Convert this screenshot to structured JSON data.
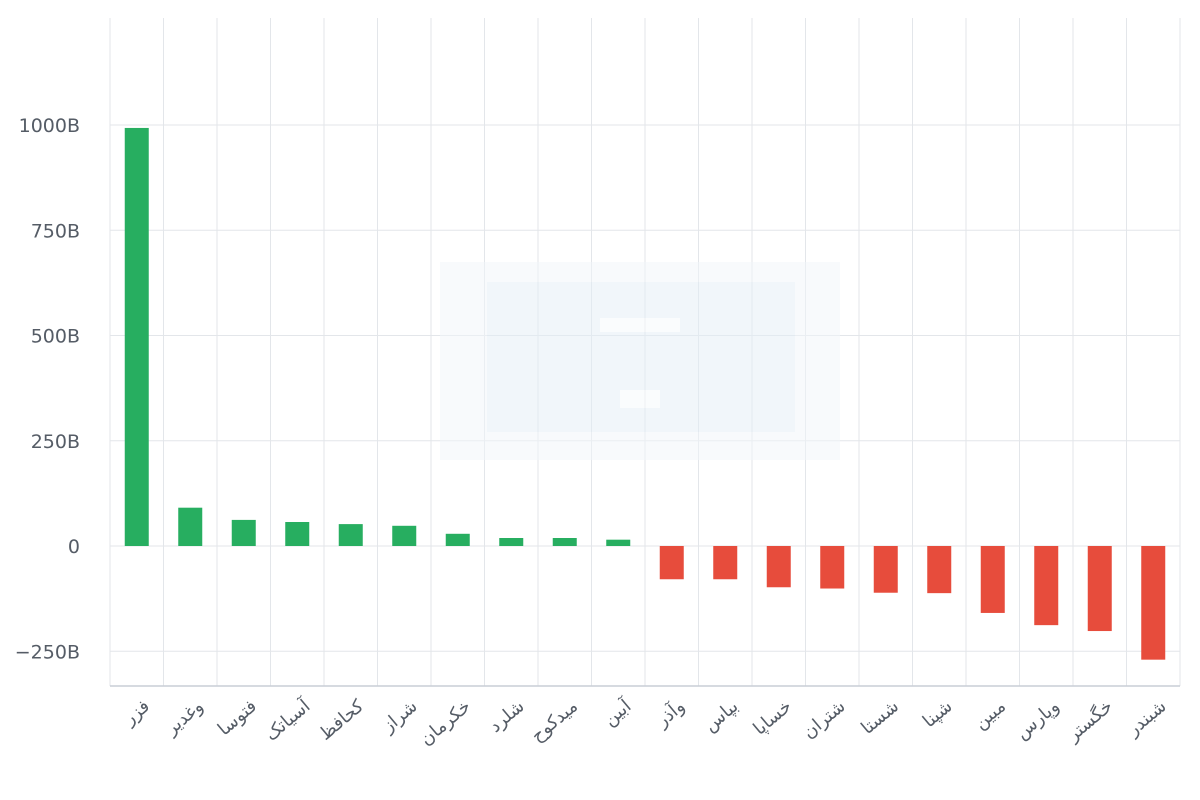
{
  "chart_data": {
    "type": "bar",
    "categories": [
      "فزر",
      "وغدیر",
      "فتوسا",
      "آسیاتک",
      "کحافظ",
      "شراز",
      "خکرمان",
      "شلرد",
      "میدکوح",
      "آبین",
      "وآذر",
      "بپاس",
      "خساپا",
      "شتران",
      "شستا",
      "شپنا",
      "مبین",
      "وپارس",
      "خگستر",
      "شبندر"
    ],
    "values": [
      993,
      91,
      62,
      57,
      52,
      48,
      29,
      19,
      19,
      15,
      -79,
      -79,
      -98,
      -101,
      -111,
      -112,
      -159,
      -188,
      -202,
      -270
    ],
    "units": "B",
    "ylim": [
      -270,
      1000
    ],
    "yticks": [
      "1000B",
      "750B",
      "500B",
      "250B",
      "0",
      "−250B"
    ],
    "ytick_values": [
      1000,
      750,
      500,
      250,
      0,
      -250
    ],
    "grid": true,
    "colors": {
      "positive": "#27ae60",
      "negative": "#e74c3c"
    }
  }
}
